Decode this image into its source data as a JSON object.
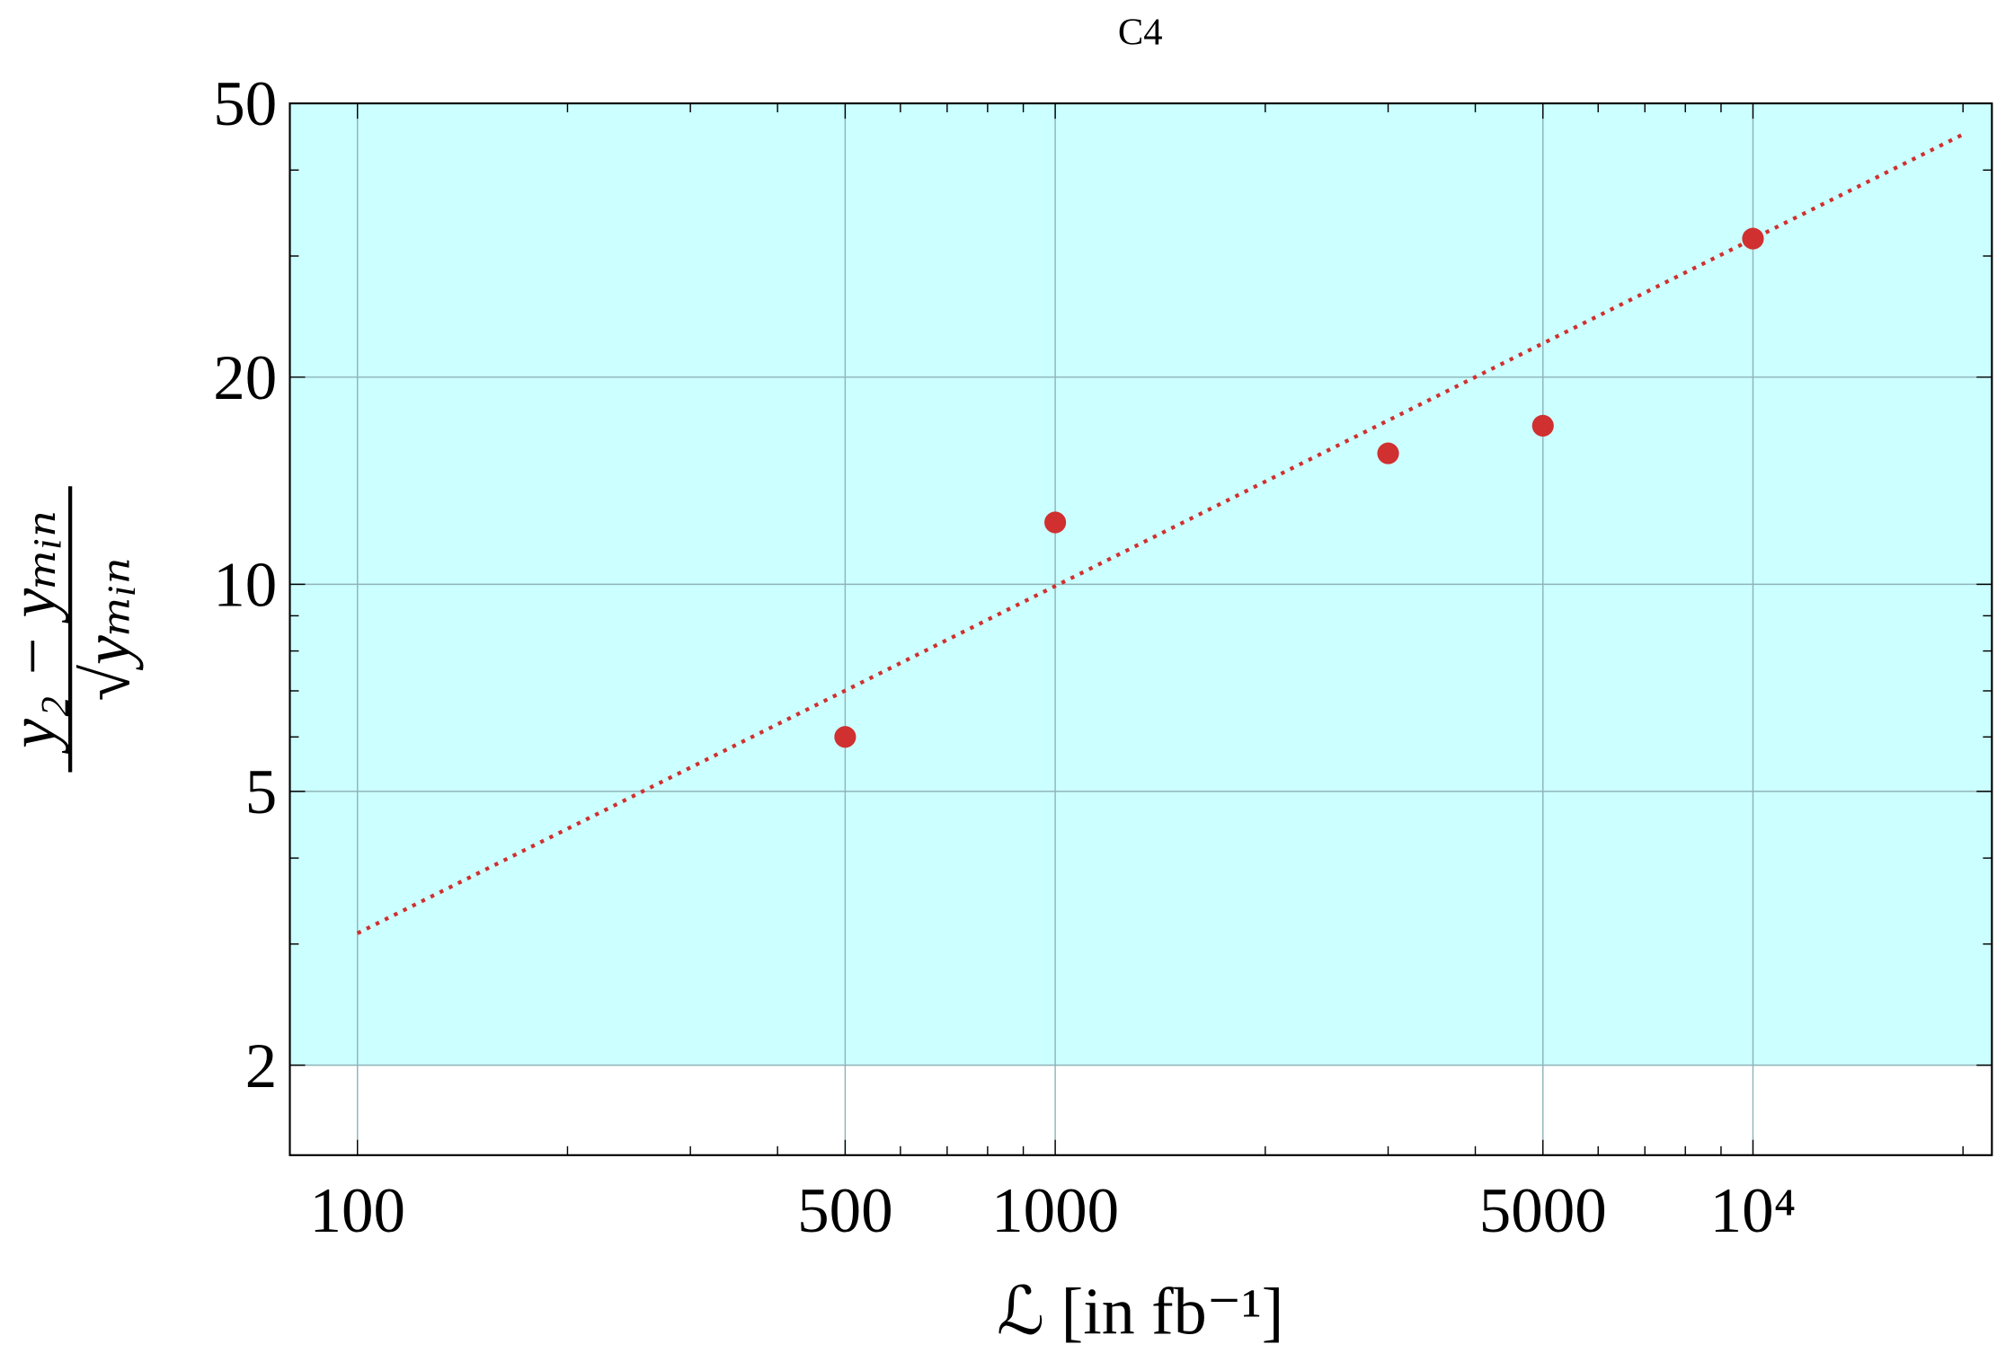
{
  "chart_data": {
    "type": "scatter",
    "title": "C4",
    "xlabel": "ℒ [in fb⁻¹]",
    "ylabel": {
      "numerator": "y₂ − yₘᵢₙ",
      "denominator": "√yₘᵢₙ"
    },
    "xscale": "log",
    "yscale": "log",
    "grid": true,
    "xlim": [
      80,
      22000
    ],
    "ylim": [
      1.48,
      50
    ],
    "xticks": [
      100,
      500,
      1000,
      5000,
      {
        "value": 10000,
        "label": "10⁴"
      }
    ],
    "yticks": [
      2,
      5,
      10,
      20,
      50
    ],
    "xminorticks": [
      200,
      300,
      400,
      600,
      700,
      800,
      900,
      2000,
      3000,
      4000,
      6000,
      7000,
      8000,
      9000,
      20000
    ],
    "yminorticks": [
      3,
      4,
      6,
      7,
      8,
      9,
      30,
      40
    ],
    "fill": {
      "y0": 2,
      "color": "#ccffff"
    },
    "series": [
      {
        "color": "#d03030",
        "x": [
          500,
          1000,
          3000,
          5000,
          10000
        ],
        "values": [
          6.0,
          12.3,
          15.5,
          17.0,
          31.8
        ]
      }
    ],
    "fit_line": {
      "color": "#d03030",
      "x": [
        100,
        20200
      ],
      "values": [
        3.11,
        45.3
      ]
    }
  }
}
